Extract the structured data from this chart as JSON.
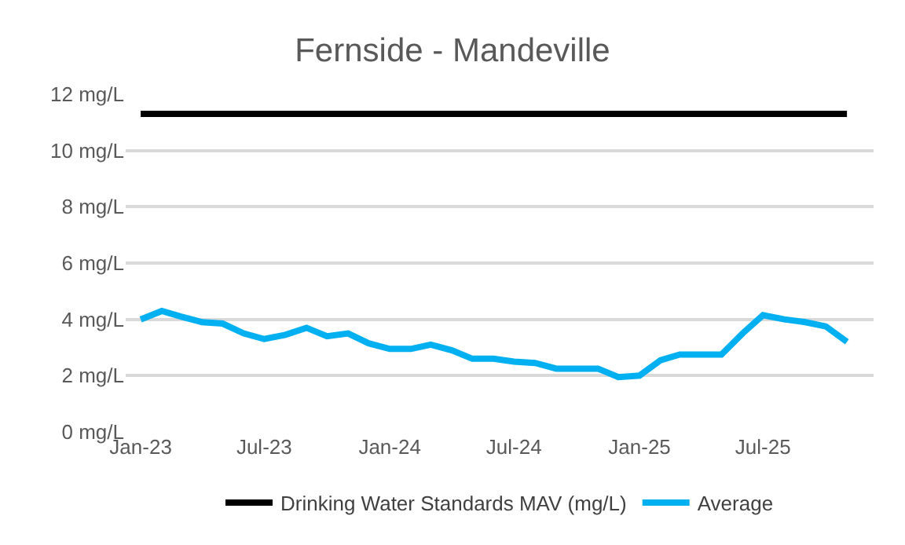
{
  "chart_data": {
    "type": "line",
    "title": "Fernside - Mandeville",
    "x": [
      "2023-01",
      "2023-02",
      "2023-03",
      "2023-04",
      "2023-05",
      "2023-06",
      "2023-07",
      "2023-08",
      "2023-09",
      "2023-10",
      "2023-11",
      "2023-12",
      "2024-01",
      "2024-02",
      "2024-03",
      "2024-04",
      "2024-05",
      "2024-06",
      "2024-07",
      "2024-08",
      "2024-09",
      "2024-10",
      "2024-11",
      "2024-12",
      "2025-01",
      "2025-02",
      "2025-03",
      "2025-04",
      "2025-05",
      "2025-06",
      "2025-07",
      "2025-08",
      "2025-09",
      "2025-10",
      "2025-11"
    ],
    "series": [
      {
        "name": "Drinking Water Standards MAV (mg/L)",
        "color": "#000000",
        "values": [
          11.3,
          11.3,
          11.3,
          11.3,
          11.3,
          11.3,
          11.3,
          11.3,
          11.3,
          11.3,
          11.3,
          11.3,
          11.3,
          11.3,
          11.3,
          11.3,
          11.3,
          11.3,
          11.3,
          11.3,
          11.3,
          11.3,
          11.3,
          11.3,
          11.3,
          11.3,
          11.3,
          11.3,
          11.3,
          11.3,
          11.3,
          11.3,
          11.3,
          11.3,
          11.3
        ]
      },
      {
        "name": "Average",
        "color": "#00b0f0",
        "values": [
          4.0,
          4.3,
          4.1,
          3.9,
          3.85,
          3.5,
          3.3,
          3.45,
          3.7,
          3.4,
          3.5,
          3.15,
          2.95,
          2.95,
          3.1,
          2.9,
          2.6,
          2.6,
          2.5,
          2.45,
          2.25,
          2.25,
          2.25,
          1.95,
          2.0,
          2.55,
          2.75,
          2.75,
          2.75,
          3.5,
          4.15,
          4.0,
          3.9,
          3.75,
          3.2
        ]
      }
    ],
    "xlim": [
      "2022-12-10",
      "2025-12-10"
    ],
    "xticks": [
      {
        "value": "2023-01",
        "label": "Jan-23"
      },
      {
        "value": "2023-07",
        "label": "Jul-23"
      },
      {
        "value": "2024-01",
        "label": "Jan-24"
      },
      {
        "value": "2024-07",
        "label": "Jul-24"
      },
      {
        "value": "2025-01",
        "label": "Jan-25"
      },
      {
        "value": "2025-07",
        "label": "Jul-25"
      }
    ],
    "ylim": [
      0,
      12
    ],
    "yticks": [
      {
        "value": 0,
        "label": "0 mg/L"
      },
      {
        "value": 2,
        "label": "2 mg/L"
      },
      {
        "value": 4,
        "label": "4 mg/L"
      },
      {
        "value": 6,
        "label": "6 mg/L"
      },
      {
        "value": 8,
        "label": "8 mg/L"
      },
      {
        "value": 10,
        "label": "10 mg/L"
      },
      {
        "value": 12,
        "label": "12 mg/L"
      }
    ],
    "grid": "y",
    "legend": "bottom",
    "marker": "none",
    "line_style": "solid"
  }
}
